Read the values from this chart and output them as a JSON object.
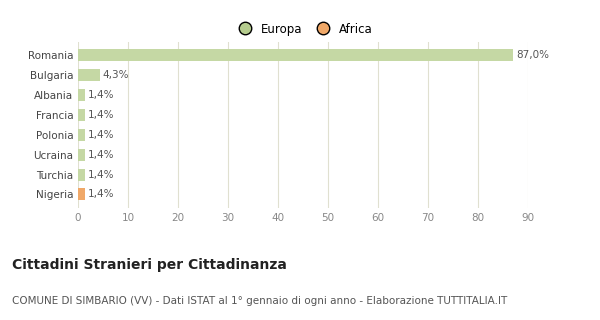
{
  "categories": [
    "Romania",
    "Bulgaria",
    "Albania",
    "Francia",
    "Polonia",
    "Ucraina",
    "Turchia",
    "Nigeria"
  ],
  "values": [
    87.0,
    4.3,
    1.4,
    1.4,
    1.4,
    1.4,
    1.4,
    1.4
  ],
  "labels": [
    "87,0%",
    "4,3%",
    "1,4%",
    "1,4%",
    "1,4%",
    "1,4%",
    "1,4%",
    "1,4%"
  ],
  "bar_colors": [
    "#c5d8a4",
    "#c5d8a4",
    "#c5d8a4",
    "#c5d8a4",
    "#c5d8a4",
    "#c5d8a4",
    "#c5d8a4",
    "#f0a868"
  ],
  "legend_labels": [
    "Europa",
    "Africa"
  ],
  "legend_colors": [
    "#b5cc8e",
    "#f0a868"
  ],
  "xlim": [
    0,
    90
  ],
  "xticks": [
    0,
    10,
    20,
    30,
    40,
    50,
    60,
    70,
    80,
    90
  ],
  "title": "Cittadini Stranieri per Cittadinanza",
  "subtitle": "COMUNE DI SIMBARIO (VV) - Dati ISTAT al 1° gennaio di ogni anno - Elaborazione TUTTITALIA.IT",
  "background_color": "#ffffff",
  "grid_color": "#e0e0d0",
  "bar_height": 0.6,
  "title_fontsize": 10,
  "subtitle_fontsize": 7.5,
  "label_fontsize": 7.5,
  "tick_fontsize": 7.5,
  "legend_fontsize": 8.5
}
